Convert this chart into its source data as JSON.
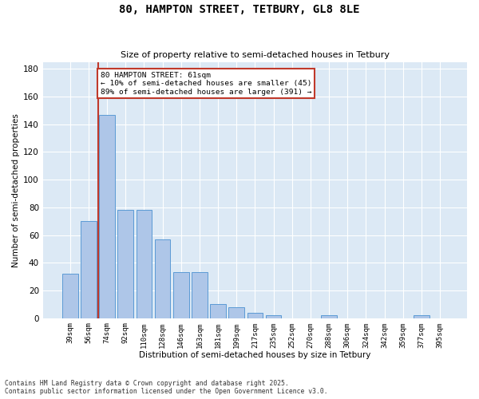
{
  "title": "80, HAMPTON STREET, TETBURY, GL8 8LE",
  "subtitle": "Size of property relative to semi-detached houses in Tetbury",
  "xlabel": "Distribution of semi-detached houses by size in Tetbury",
  "ylabel": "Number of semi-detached properties",
  "categories": [
    "39sqm",
    "56sqm",
    "74sqm",
    "92sqm",
    "110sqm",
    "128sqm",
    "146sqm",
    "163sqm",
    "181sqm",
    "199sqm",
    "217sqm",
    "235sqm",
    "252sqm",
    "270sqm",
    "288sqm",
    "306sqm",
    "324sqm",
    "342sqm",
    "359sqm",
    "377sqm",
    "395sqm"
  ],
  "values": [
    32,
    70,
    147,
    78,
    78,
    57,
    33,
    33,
    10,
    8,
    4,
    2,
    0,
    0,
    2,
    0,
    0,
    0,
    0,
    2,
    0
  ],
  "bar_color": "#aec6e8",
  "bar_edge_color": "#5b9bd5",
  "vline_color": "#c0392b",
  "annotation_text": "80 HAMPTON STREET: 61sqm\n← 10% of semi-detached houses are smaller (45)\n89% of semi-detached houses are larger (391) →",
  "annotation_box_color": "#ffffff",
  "annotation_box_edge": "#c0392b",
  "ylim": [
    0,
    185
  ],
  "yticks": [
    0,
    20,
    40,
    60,
    80,
    100,
    120,
    140,
    160,
    180
  ],
  "bg_color": "#dce9f5",
  "grid_color": "#ffffff",
  "footer_line1": "Contains HM Land Registry data © Crown copyright and database right 2025.",
  "footer_line2": "Contains public sector information licensed under the Open Government Licence v3.0."
}
